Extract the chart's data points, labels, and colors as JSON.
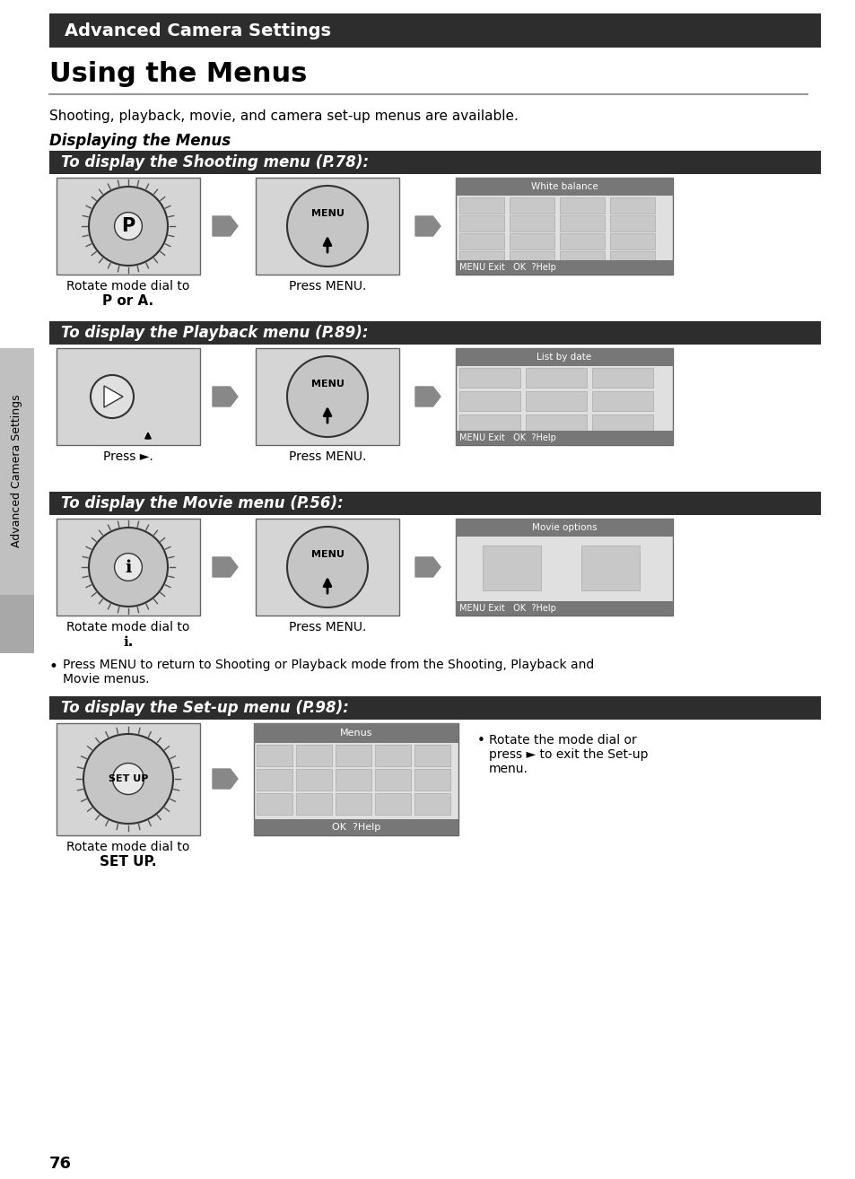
{
  "page_bg": "#ffffff",
  "header_bg": "#2d2d2d",
  "header_text": "Advanced Camera Settings",
  "header_text_color": "#ffffff",
  "title_text": "Using the Menus",
  "section_header_bg": "#2d2d2d",
  "section_header_text_color": "#ffffff",
  "sidebar_bg": "#c0c0c0",
  "sidebar_tab_bg": "#a8a8a8",
  "sidebar_text": "Advanced Camera Settings",
  "body_color": "#000000",
  "intro_text": "Shooting, playback, movie, and camera set-up menus are available.",
  "displaying_heading": "Displaying the Menus",
  "section1_header": "To display the Shooting menu (P.78):",
  "section2_header": "To display the Playback menu (P.89):",
  "section3_header": "To display the Movie menu (P.56):",
  "section4_header": "To display the Set-up menu (P.98):",
  "bullet_text1": "Press MENU to return to Shooting or Playback mode from the Shooting, Playback and",
  "bullet_text2": "Movie menus.",
  "setup_bullet1": "Rotate the mode dial or",
  "setup_bullet2": "press ► to exit the Set-up",
  "setup_bullet3": "menu.",
  "page_number": "76",
  "img_bg": "#d5d5d5",
  "img_border": "#666666",
  "menu_screen_bg": "#e0e0e0",
  "menu_header_bg": "#777777",
  "menu_bar_bg": "#777777",
  "arrow_color": "#888888",
  "dial_color": "#c5c5c5",
  "dial_border": "#333333"
}
